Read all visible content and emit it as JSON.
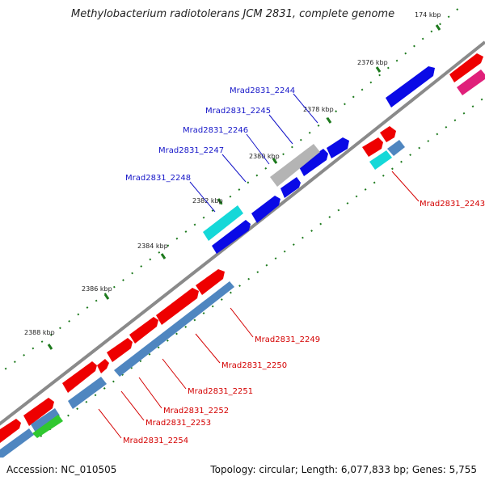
{
  "header": {
    "title": "Methylobacterium radiotolerans JCM 2831, complete genome"
  },
  "footer": {
    "accession": "Accession: NC_010505",
    "topology": "Topology: circular; Length: 6,077,833 bp; Genes: 5,755"
  },
  "ticks": [
    "174 kbp",
    "2376 kbp",
    "2378 kbp",
    "2380 kbp",
    "2382 kbp",
    "2384 kbp",
    "2386 kbp",
    "2388 kbp"
  ],
  "gene_labels": {
    "top": [
      "Mrad2831_2244",
      "Mrad2831_2245",
      "Mrad2831_2246",
      "Mrad2831_2247",
      "Mrad2831_2248"
    ],
    "bottom": [
      "Mrad2831_2243",
      "Mrad2831_2249",
      "Mrad2831_2250",
      "Mrad2831_2251",
      "Mrad2831_2252",
      "Mrad2831_2253",
      "Mrad2831_2254"
    ]
  },
  "colors": {
    "backbone": "#8a8a8a",
    "cds_red": "#ee0000",
    "cds_blue": "#0a0ae6",
    "cds_steel": "#4f86c0",
    "cds_cyan": "#15d8d8",
    "cds_gray": "#b4b4b4",
    "cds_magenta": "#e0207a",
    "cds_green": "#30c830",
    "tick_green": "#1d7a1d",
    "label_top": "#1515c8",
    "label_bottom": "#d40000"
  }
}
